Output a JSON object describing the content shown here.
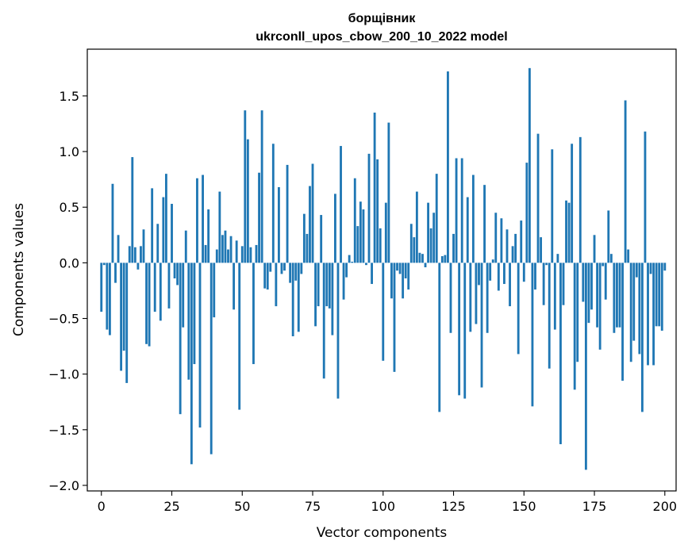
{
  "chart_data": {
    "type": "bar",
    "title": "борщівник",
    "subtitle": "ukrconll_upos_cbow_200_10_2022 model",
    "xlabel": "Vector components",
    "ylabel": "Components values",
    "xlim": [
      -5,
      204
    ],
    "ylim": [
      -2.05,
      1.92
    ],
    "xticks": [
      0,
      25,
      50,
      75,
      100,
      125,
      150,
      175,
      200
    ],
    "yticks": [
      -2.0,
      -1.5,
      -1.0,
      -0.5,
      0.0,
      0.5,
      1.0,
      1.5
    ],
    "xtick_labels": [
      "0",
      "25",
      "50",
      "75",
      "100",
      "125",
      "150",
      "175",
      "200"
    ],
    "ytick_labels": [
      "−2.0",
      "−1.5",
      "−1.0",
      "−0.5",
      "0.0",
      "0.5",
      "1.0",
      "1.5"
    ],
    "bar_color": "#1f77b4",
    "values": [
      -0.44,
      -0.02,
      -0.6,
      -0.65,
      0.71,
      -0.18,
      0.25,
      -0.97,
      -0.79,
      -1.08,
      0.15,
      0.95,
      0.14,
      -0.06,
      0.15,
      0.3,
      -0.73,
      -0.75,
      0.67,
      -0.44,
      0.35,
      -0.52,
      0.59,
      0.8,
      -0.41,
      0.53,
      -0.14,
      -0.2,
      -1.36,
      -0.58,
      0.29,
      -1.05,
      -1.81,
      -0.91,
      0.76,
      -1.48,
      0.79,
      0.16,
      0.48,
      -1.72,
      -0.49,
      0.12,
      0.64,
      0.25,
      0.29,
      0.12,
      0.24,
      -0.42,
      0.2,
      -1.32,
      0.15,
      1.37,
      1.11,
      0.14,
      -0.91,
      0.16,
      0.81,
      1.37,
      -0.23,
      -0.24,
      -0.08,
      1.07,
      -0.39,
      0.68,
      -0.1,
      -0.07,
      0.88,
      -0.18,
      -0.66,
      -0.16,
      -0.62,
      -0.1,
      0.44,
      0.26,
      0.69,
      0.89,
      -0.57,
      -0.39,
      0.43,
      -1.04,
      -0.39,
      -0.41,
      -0.65,
      0.62,
      -1.22,
      1.05,
      -0.33,
      -0.13,
      0.07,
      0.01,
      0.76,
      0.33,
      0.55,
      0.48,
      -0.02,
      0.98,
      -0.19,
      1.35,
      0.93,
      0.31,
      -0.88,
      0.54,
      1.26,
      -0.32,
      -0.98,
      -0.07,
      -0.1,
      -0.32,
      -0.14,
      -0.24,
      0.35,
      0.23,
      0.64,
      0.09,
      0.08,
      -0.04,
      0.54,
      0.31,
      0.45,
      0.8,
      -1.34,
      0.06,
      0.07,
      1.72,
      -0.63,
      0.26,
      0.94,
      -1.19,
      0.94,
      -1.22,
      0.59,
      -0.62,
      0.79,
      -0.55,
      -0.2,
      -1.12,
      0.7,
      -0.63,
      -0.16,
      0.03,
      0.45,
      -0.25,
      0.4,
      -0.19,
      0.3,
      -0.39,
      0.15,
      0.26,
      -0.82,
      0.38,
      -0.17,
      0.9,
      1.75,
      -1.29,
      -0.24,
      1.16,
      0.23,
      -0.38,
      -0.02,
      -0.95,
      1.02,
      -0.6,
      0.08,
      -1.63,
      -0.38,
      0.56,
      0.54,
      1.07,
      -1.14,
      -0.89,
      1.13,
      -0.35,
      -1.86,
      -0.54,
      -0.42,
      0.25,
      -0.58,
      -0.78,
      -0.03,
      -0.33,
      0.47,
      0.08,
      -0.63,
      -0.58,
      -0.58,
      -1.06,
      1.46,
      0.12,
      -0.89,
      -0.7,
      -0.13,
      -0.82,
      -1.34,
      1.18,
      -0.92,
      -0.1,
      -0.92,
      -0.57,
      -0.57,
      -0.61,
      -0.07
    ]
  }
}
